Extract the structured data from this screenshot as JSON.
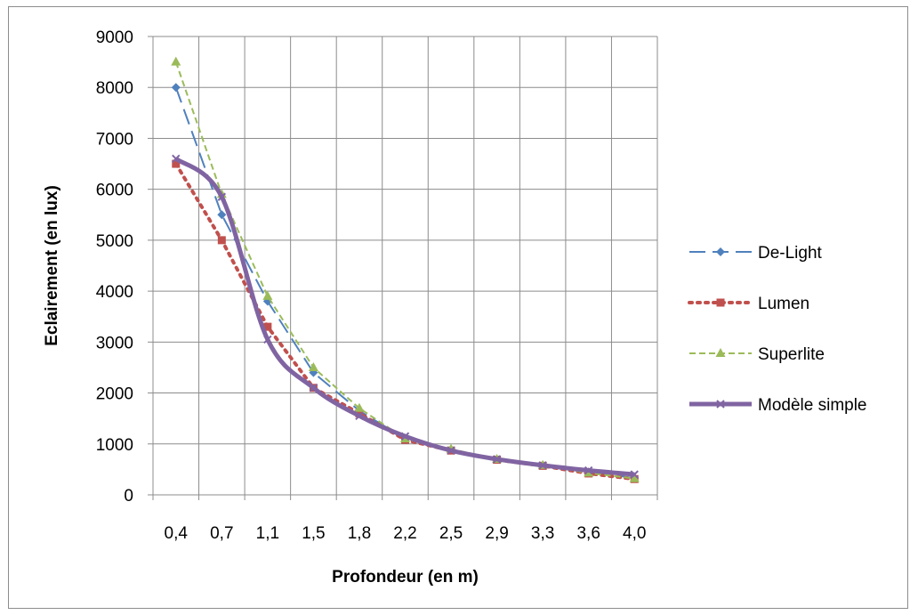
{
  "chart_data": {
    "type": "line",
    "title": "",
    "xlabel": "Profondeur (en m)",
    "ylabel": "Eclairement (en lux)",
    "categories": [
      "0,4",
      "0,7",
      "1,1",
      "1,5",
      "1,8",
      "2,2",
      "2,5",
      "2,9",
      "3,3",
      "3,6",
      "4,0"
    ],
    "ylim": [
      0,
      9000
    ],
    "yticks": [
      "0",
      "1000",
      "2000",
      "3000",
      "4000",
      "5000",
      "6000",
      "7000",
      "8000",
      "9000"
    ],
    "grid": true,
    "legend_position": "right",
    "series": [
      {
        "name": "De-Light",
        "color": "#4f81bd",
        "style": "dash",
        "marker": "diamond",
        "smooth": false,
        "values": [
          8000,
          5500,
          3800,
          2400,
          1650,
          1100,
          880,
          700,
          580,
          450,
          330
        ]
      },
      {
        "name": "Lumen",
        "color": "#c0504d",
        "style": "dot",
        "marker": "square",
        "smooth": false,
        "values": [
          6500,
          5000,
          3300,
          2100,
          1600,
          1080,
          870,
          690,
          570,
          420,
          310
        ]
      },
      {
        "name": "Superlite",
        "color": "#9bbb59",
        "style": "shortdash",
        "marker": "triangle",
        "smooth": false,
        "values": [
          8500,
          5900,
          3900,
          2500,
          1700,
          1100,
          900,
          700,
          580,
          430,
          320
        ]
      },
      {
        "name": "Modèle simple",
        "color": "#8064a2",
        "style": "solid",
        "marker": "x",
        "smooth": true,
        "values": [
          6600,
          5850,
          3050,
          2100,
          1550,
          1150,
          870,
          700,
          580,
          480,
          400
        ]
      }
    ]
  }
}
